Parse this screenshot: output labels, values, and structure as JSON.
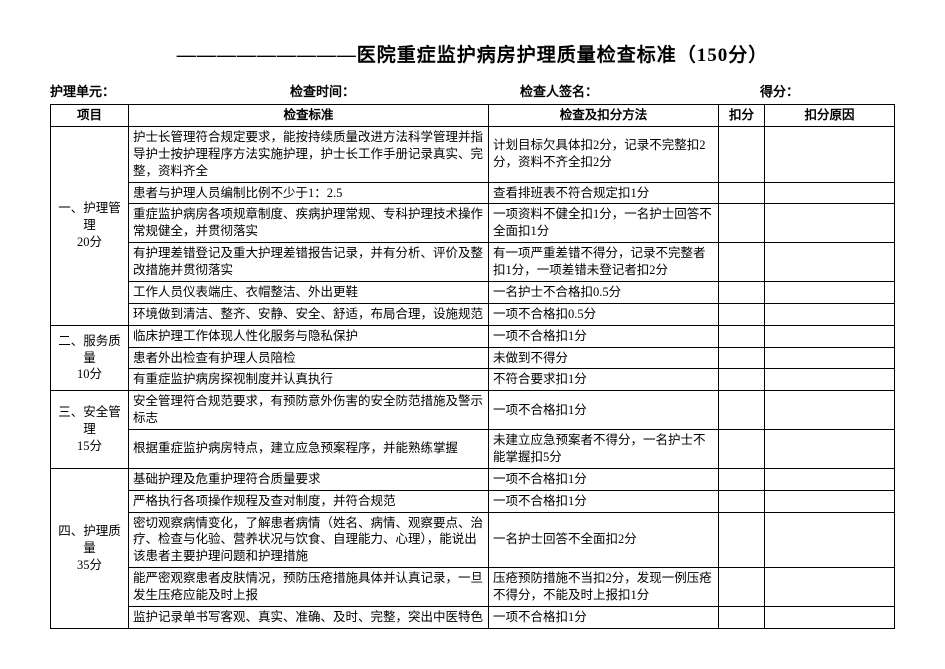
{
  "title": "—————————医院重症监护病房护理质量检查标准（150分）",
  "header": {
    "unit_label": "护理单元：",
    "time_label": "检查时间：",
    "signer_label": "检查人签名：",
    "score_label": "得分："
  },
  "columns": {
    "project": "项目",
    "standard": "检查标准",
    "method": "检查及扣分方法",
    "deduct": "扣分",
    "reason": "扣分原因"
  },
  "sections": [
    {
      "label": "一、护理管理\n20分",
      "rows": [
        {
          "std": "护士长管理符合规定要求，能按持续质量改进方法科学管理并指导护士按护理程序方法实施护理，护士长工作手册记录真实、完整，资料齐全",
          "method": "计划目标欠具体扣2分，记录不完整扣2分，资料不齐全扣2分"
        },
        {
          "std": "患者与护理人员编制比例不少于1：2.5",
          "method": "查看排班表不符合规定扣1分"
        },
        {
          "std": "重症监护病房各项规章制度、疾病护理常规、专科护理技术操作常规健全，并贯彻落实",
          "method": "一项资料不健全扣1分，一名护士回答不全面扣1分"
        },
        {
          "std": "有护理差错登记及重大护理差错报告记录，并有分析、评价及整改措施并贯彻落实",
          "method": "有一项严重差错不得分，记录不完整者扣1分，一项差错未登记者扣2分"
        },
        {
          "std": "工作人员仪表端庄、衣帽整洁、外出更鞋",
          "method": "一名护士不合格扣0.5分"
        },
        {
          "std": "环境做到清洁、整齐、安静、安全、舒适，布局合理，设施规范",
          "method": "一项不合格扣0.5分"
        }
      ]
    },
    {
      "label": "二、服务质量\n10分",
      "rows": [
        {
          "std": "临床护理工作体现人性化服务与隐私保护",
          "method": "一项不合格扣1分"
        },
        {
          "std": "患者外出检查有护理人员陪检",
          "method": "未做到不得分"
        },
        {
          "std": "有重症监护病房探视制度并认真执行",
          "method": "不符合要求扣1分"
        }
      ]
    },
    {
      "label": "三、安全管理\n15分",
      "rows": [
        {
          "std": "安全管理符合规范要求，有预防意外伤害的安全防范措施及警示标志",
          "method": "一项不合格扣1分"
        },
        {
          "std": "根据重症监护病房特点，建立应急预案程序，并能熟练掌握",
          "method": "未建立应急预案者不得分，一名护士不能掌握扣5分"
        }
      ]
    },
    {
      "label": "四、护理质量\n35分",
      "rows": [
        {
          "std": "基础护理及危重护理符合质量要求",
          "method": "一项不合格扣1分"
        },
        {
          "std": "严格执行各项操作规程及查对制度，并符合规范",
          "method": "一项不合格扣1分"
        },
        {
          "std": "密切观察病情变化，了解患者病情（姓名、病情、观察要点、治疗、检查与化验、营养状况与饮食、自理能力、心理），能说出该患者主要护理问题和护理措施",
          "method": "一名护士回答不全面扣2分"
        },
        {
          "std": "能严密观察患者皮肤情况，预防压疮措施具体并认真记录，一旦发生压疮应能及时上报",
          "method": "压疮预防措施不当扣2分，发现一例压疮不得分，不能及时上报扣1分"
        },
        {
          "std": "监护记录单书写客观、真实、准确、及时、完整，突出中医特色",
          "method": "一项不合格扣1分"
        }
      ]
    }
  ]
}
